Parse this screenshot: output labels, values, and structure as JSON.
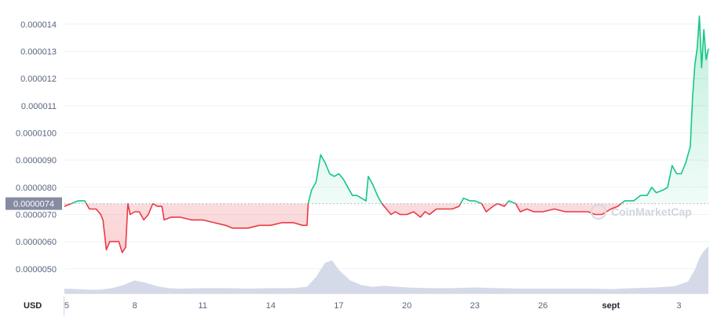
{
  "chart_data": {
    "type": "line",
    "currency_label": "USD",
    "reference_price": 7.4e-06,
    "reference_label": "0.0000074",
    "watermark": "CoinMarketCap",
    "y_ticks": [
      {
        "value": 5e-06,
        "label": "0.0000050"
      },
      {
        "value": 6e-06,
        "label": "0.0000060"
      },
      {
        "value": 7e-06,
        "label": "0.0000070"
      },
      {
        "value": 8e-06,
        "label": "0.0000080"
      },
      {
        "value": 9e-06,
        "label": "0.0000090"
      },
      {
        "value": 1e-05,
        "label": "0.0000100"
      },
      {
        "value": 1.1e-05,
        "label": "0.000011"
      },
      {
        "value": 1.2e-05,
        "label": "0.000012"
      },
      {
        "value": 1.3e-05,
        "label": "0.000013"
      },
      {
        "value": 1.4e-05,
        "label": "0.000014"
      }
    ],
    "x_ticks": [
      {
        "day": 5,
        "label": "5"
      },
      {
        "day": 8,
        "label": "8"
      },
      {
        "day": 11,
        "label": "11"
      },
      {
        "day": 14,
        "label": "14"
      },
      {
        "day": 17,
        "label": "17"
      },
      {
        "day": 20,
        "label": "20"
      },
      {
        "day": 23,
        "label": "23"
      },
      {
        "day": 26,
        "label": "26"
      },
      {
        "day": 29,
        "label": "sept"
      },
      {
        "day": 32,
        "label": "3"
      }
    ],
    "x_range": [
      4.9,
      33.3
    ],
    "ylim": [
      4.1e-06,
      1.46e-05
    ],
    "colors": {
      "up": "#16c784",
      "down": "#ea3943",
      "axis_text": "#58667e",
      "grid": "#eff2f5",
      "volume": "#cfd6e4",
      "ref_label_bg": "#858ca2"
    },
    "price_series": [
      [
        4.9,
        7.3e-06
      ],
      [
        5.2,
        7.4e-06
      ],
      [
        5.5,
        7.5e-06
      ],
      [
        5.8,
        7.5e-06
      ],
      [
        6.0,
        7.2e-06
      ],
      [
        6.3,
        7.2e-06
      ],
      [
        6.5,
        7e-06
      ],
      [
        6.6,
        6.8e-06
      ],
      [
        6.75,
        5.7e-06
      ],
      [
        6.9,
        6e-06
      ],
      [
        7.1,
        6e-06
      ],
      [
        7.3,
        6e-06
      ],
      [
        7.45,
        5.6e-06
      ],
      [
        7.6,
        5.8e-06
      ],
      [
        7.7,
        7.4e-06
      ],
      [
        7.8,
        7e-06
      ],
      [
        8.0,
        7.1e-06
      ],
      [
        8.2,
        7.1e-06
      ],
      [
        8.4,
        6.8e-06
      ],
      [
        8.6,
        7e-06
      ],
      [
        8.8,
        7.4e-06
      ],
      [
        9.0,
        7.3e-06
      ],
      [
        9.2,
        7.3e-06
      ],
      [
        9.3,
        6.8e-06
      ],
      [
        9.6,
        6.9e-06
      ],
      [
        10.0,
        6.9e-06
      ],
      [
        10.5,
        6.8e-06
      ],
      [
        11.0,
        6.8e-06
      ],
      [
        11.5,
        6.7e-06
      ],
      [
        12.0,
        6.6e-06
      ],
      [
        12.3,
        6.5e-06
      ],
      [
        12.6,
        6.5e-06
      ],
      [
        13.0,
        6.5e-06
      ],
      [
        13.5,
        6.6e-06
      ],
      [
        14.0,
        6.6e-06
      ],
      [
        14.5,
        6.7e-06
      ],
      [
        15.0,
        6.7e-06
      ],
      [
        15.4,
        6.6e-06
      ],
      [
        15.6,
        6.6e-06
      ],
      [
        15.65,
        7.4e-06
      ],
      [
        15.8,
        7.9e-06
      ],
      [
        16.0,
        8.2e-06
      ],
      [
        16.2,
        9.2e-06
      ],
      [
        16.4,
        8.9e-06
      ],
      [
        16.6,
        8.5e-06
      ],
      [
        16.8,
        8.4e-06
      ],
      [
        17.0,
        8.5e-06
      ],
      [
        17.2,
        8.3e-06
      ],
      [
        17.4,
        8e-06
      ],
      [
        17.6,
        7.7e-06
      ],
      [
        17.8,
        7.7e-06
      ],
      [
        18.0,
        7.6e-06
      ],
      [
        18.2,
        7.5e-06
      ],
      [
        18.3,
        8.4e-06
      ],
      [
        18.5,
        8.1e-06
      ],
      [
        18.7,
        7.7e-06
      ],
      [
        18.9,
        7.4e-06
      ],
      [
        19.1,
        7.2e-06
      ],
      [
        19.3,
        7e-06
      ],
      [
        19.5,
        7.1e-06
      ],
      [
        19.7,
        7e-06
      ],
      [
        20.0,
        7e-06
      ],
      [
        20.3,
        7.1e-06
      ],
      [
        20.6,
        6.9e-06
      ],
      [
        20.8,
        7.1e-06
      ],
      [
        21.0,
        7e-06
      ],
      [
        21.3,
        7.2e-06
      ],
      [
        21.6,
        7.2e-06
      ],
      [
        22.0,
        7.2e-06
      ],
      [
        22.3,
        7.3e-06
      ],
      [
        22.5,
        7.6e-06
      ],
      [
        22.8,
        7.5e-06
      ],
      [
        23.0,
        7.5e-06
      ],
      [
        23.3,
        7.4e-06
      ],
      [
        23.5,
        7.1e-06
      ],
      [
        23.8,
        7.3e-06
      ],
      [
        24.0,
        7.4e-06
      ],
      [
        24.3,
        7.3e-06
      ],
      [
        24.5,
        7.5e-06
      ],
      [
        24.8,
        7.4e-06
      ],
      [
        25.0,
        7.1e-06
      ],
      [
        25.3,
        7.2e-06
      ],
      [
        25.6,
        7.1e-06
      ],
      [
        26.0,
        7.1e-06
      ],
      [
        26.5,
        7.2e-06
      ],
      [
        27.0,
        7.1e-06
      ],
      [
        27.5,
        7.1e-06
      ],
      [
        28.0,
        7.1e-06
      ],
      [
        28.3,
        7e-06
      ],
      [
        28.6,
        7e-06
      ],
      [
        29.0,
        7.2e-06
      ],
      [
        29.3,
        7.3e-06
      ],
      [
        29.6,
        7.5e-06
      ],
      [
        30.0,
        7.5e-06
      ],
      [
        30.3,
        7.7e-06
      ],
      [
        30.6,
        7.7e-06
      ],
      [
        30.8,
        8e-06
      ],
      [
        31.0,
        7.8e-06
      ],
      [
        31.3,
        7.9e-06
      ],
      [
        31.5,
        8e-06
      ],
      [
        31.7,
        8.8e-06
      ],
      [
        31.9,
        8.5e-06
      ],
      [
        32.1,
        8.5e-06
      ],
      [
        32.3,
        8.9e-06
      ],
      [
        32.5,
        9.5e-06
      ],
      [
        32.6,
        1.13e-05
      ],
      [
        32.7,
        1.25e-05
      ],
      [
        32.8,
        1.31e-05
      ],
      [
        32.9,
        1.43e-05
      ],
      [
        33.0,
        1.24e-05
      ],
      [
        33.1,
        1.38e-05
      ],
      [
        33.2,
        1.27e-05
      ],
      [
        33.3,
        1.31e-05
      ]
    ],
    "volume_series": [
      [
        4.9,
        0.2
      ],
      [
        5.5,
        0.18
      ],
      [
        6.0,
        0.15
      ],
      [
        6.5,
        0.16
      ],
      [
        7.0,
        0.22
      ],
      [
        7.5,
        0.35
      ],
      [
        8.0,
        0.55
      ],
      [
        8.5,
        0.45
      ],
      [
        9.0,
        0.3
      ],
      [
        9.5,
        0.22
      ],
      [
        10.0,
        0.2
      ],
      [
        11.0,
        0.22
      ],
      [
        12.0,
        0.22
      ],
      [
        13.0,
        0.2
      ],
      [
        14.0,
        0.22
      ],
      [
        15.0,
        0.22
      ],
      [
        15.6,
        0.28
      ],
      [
        16.0,
        0.7
      ],
      [
        16.4,
        1.3
      ],
      [
        16.7,
        1.4
      ],
      [
        17.0,
        1.0
      ],
      [
        17.5,
        0.55
      ],
      [
        18.0,
        0.35
      ],
      [
        18.5,
        0.28
      ],
      [
        19.0,
        0.32
      ],
      [
        20.0,
        0.25
      ],
      [
        21.0,
        0.22
      ],
      [
        22.0,
        0.22
      ],
      [
        23.0,
        0.25
      ],
      [
        24.0,
        0.22
      ],
      [
        25.0,
        0.2
      ],
      [
        26.0,
        0.2
      ],
      [
        27.0,
        0.2
      ],
      [
        28.0,
        0.2
      ],
      [
        29.0,
        0.18
      ],
      [
        30.0,
        0.22
      ],
      [
        31.0,
        0.25
      ],
      [
        31.8,
        0.3
      ],
      [
        32.4,
        0.5
      ],
      [
        32.7,
        1.0
      ],
      [
        32.9,
        1.5
      ],
      [
        33.1,
        1.8
      ],
      [
        33.3,
        2.0
      ]
    ]
  }
}
